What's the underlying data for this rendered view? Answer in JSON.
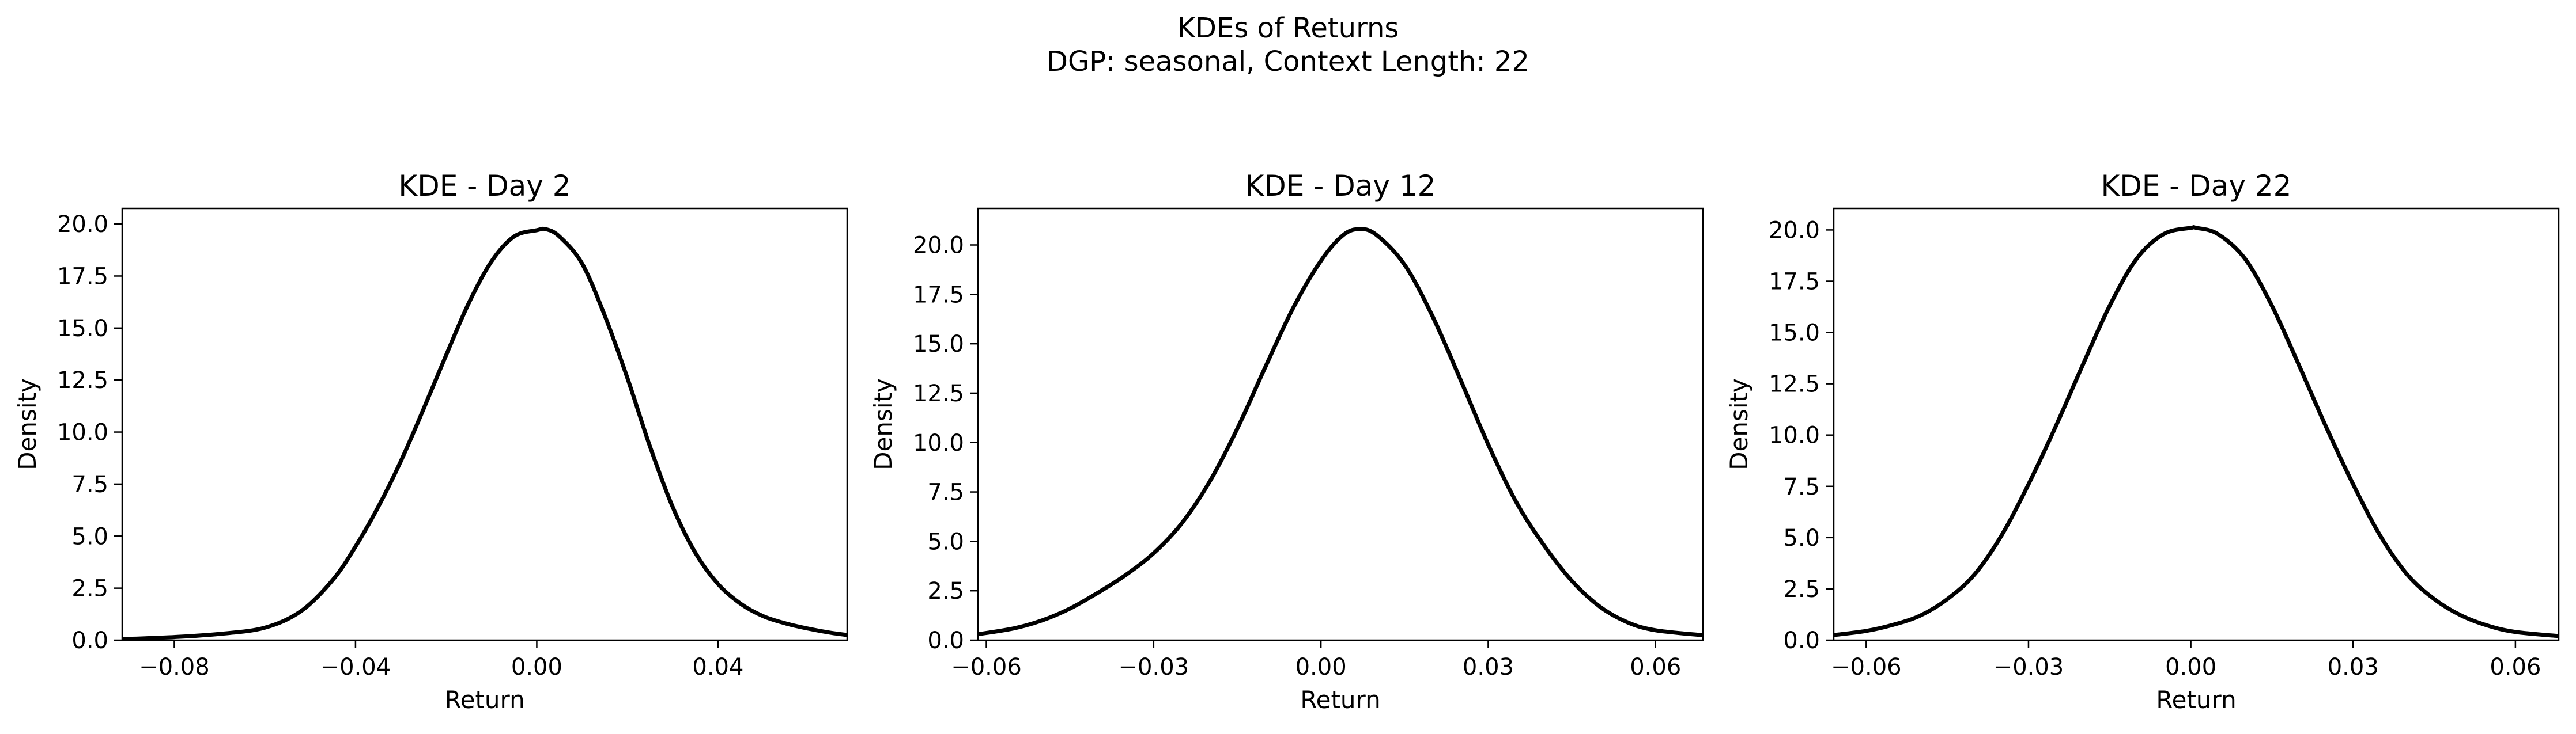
{
  "figure": {
    "title_line1": "KDEs of Returns",
    "title_line2": "DGP: seasonal, Context Length: 22"
  },
  "colors": {
    "curve": "#000000",
    "axes": "#000000",
    "background": "#ffffff"
  },
  "chart_data": [
    {
      "type": "line",
      "title": "KDE - Day 2",
      "xlabel": "Return",
      "ylabel": "Density",
      "xlim": [
        -0.0915,
        0.0685
      ],
      "ylim": [
        0,
        20.75
      ],
      "xticks": [
        -0.08,
        -0.04,
        0.0,
        0.04
      ],
      "xtick_labels": [
        "−0.08",
        "−0.04",
        "0.00",
        "0.04"
      ],
      "yticks": [
        0,
        2.5,
        5,
        7.5,
        10,
        12.5,
        15,
        17.5,
        20
      ],
      "ytick_labels": [
        "0.0",
        "2.5",
        "5.0",
        "7.5",
        "10.0",
        "12.5",
        "15.0",
        "17.5",
        "20.0"
      ],
      "grid": false,
      "legend": "none",
      "series": [
        {
          "x": [
            -0.0915,
            -0.08,
            -0.07,
            -0.06,
            -0.052,
            -0.045,
            -0.04,
            -0.035,
            -0.03,
            -0.025,
            -0.02,
            -0.015,
            -0.01,
            -0.005,
            0.0,
            0.002,
            0.005,
            0.01,
            0.015,
            0.02,
            0.025,
            0.03,
            0.035,
            0.04,
            0.045,
            0.05,
            0.055,
            0.06,
            0.065,
            0.0685
          ],
          "y": [
            0.05,
            0.15,
            0.3,
            0.6,
            1.4,
            2.9,
            4.5,
            6.4,
            8.6,
            11.1,
            13.7,
            16.2,
            18.2,
            19.4,
            19.7,
            19.75,
            19.4,
            18.1,
            15.6,
            12.6,
            9.3,
            6.4,
            4.2,
            2.7,
            1.75,
            1.15,
            0.8,
            0.55,
            0.35,
            0.25
          ]
        }
      ]
    },
    {
      "type": "line",
      "title": "KDE - Day 12",
      "xlabel": "Return",
      "ylabel": "Density",
      "xlim": [
        -0.0615,
        0.0685
      ],
      "ylim": [
        0,
        21.85
      ],
      "xticks": [
        -0.06,
        -0.03,
        0.0,
        0.03,
        0.06
      ],
      "xtick_labels": [
        "−0.06",
        "−0.03",
        "0.00",
        "0.03",
        "0.06"
      ],
      "yticks": [
        0,
        2.5,
        5,
        7.5,
        10,
        12.5,
        15,
        17.5,
        20
      ],
      "ytick_labels": [
        "0.0",
        "2.5",
        "5.0",
        "7.5",
        "10.0",
        "12.5",
        "15.0",
        "17.5",
        "20.0"
      ],
      "grid": false,
      "legend": "none",
      "series": [
        {
          "x": [
            -0.0615,
            -0.055,
            -0.05,
            -0.045,
            -0.04,
            -0.035,
            -0.03,
            -0.025,
            -0.02,
            -0.015,
            -0.01,
            -0.005,
            0.0,
            0.004,
            0.007,
            0.01,
            0.015,
            0.02,
            0.025,
            0.03,
            0.035,
            0.04,
            0.045,
            0.05,
            0.055,
            0.06,
            0.0685
          ],
          "y": [
            0.3,
            0.6,
            1.0,
            1.6,
            2.4,
            3.3,
            4.4,
            5.9,
            8.0,
            10.7,
            13.8,
            16.8,
            19.2,
            20.5,
            20.8,
            20.5,
            19.0,
            16.4,
            13.2,
            9.9,
            7.0,
            4.8,
            3.0,
            1.7,
            0.9,
            0.5,
            0.25
          ]
        }
      ]
    },
    {
      "type": "line",
      "title": "KDE - Day 22",
      "xlabel": "Return",
      "ylabel": "Density",
      "xlim": [
        -0.066,
        0.068
      ],
      "ylim": [
        0,
        21.05
      ],
      "xticks": [
        -0.06,
        -0.03,
        0.0,
        0.03,
        0.06
      ],
      "xtick_labels": [
        "−0.06",
        "−0.03",
        "0.00",
        "0.03",
        "0.06"
      ],
      "yticks": [
        0,
        2.5,
        5,
        7.5,
        10,
        12.5,
        15,
        17.5,
        20
      ],
      "ytick_labels": [
        "0.0",
        "2.5",
        "5.0",
        "7.5",
        "10.0",
        "12.5",
        "15.0",
        "17.5",
        "20.0"
      ],
      "grid": false,
      "legend": "none",
      "series": [
        {
          "x": [
            -0.066,
            -0.06,
            -0.055,
            -0.05,
            -0.045,
            -0.04,
            -0.035,
            -0.03,
            -0.025,
            -0.02,
            -0.015,
            -0.01,
            -0.005,
            0.0,
            0.001,
            0.005,
            0.01,
            0.015,
            0.02,
            0.025,
            0.03,
            0.035,
            0.04,
            0.045,
            0.05,
            0.055,
            0.06,
            0.068
          ],
          "y": [
            0.25,
            0.45,
            0.75,
            1.2,
            2.0,
            3.2,
            5.1,
            7.6,
            10.4,
            13.4,
            16.3,
            18.6,
            19.8,
            20.1,
            20.1,
            19.8,
            18.6,
            16.3,
            13.4,
            10.4,
            7.6,
            5.1,
            3.2,
            2.0,
            1.2,
            0.7,
            0.4,
            0.2
          ]
        }
      ]
    }
  ]
}
